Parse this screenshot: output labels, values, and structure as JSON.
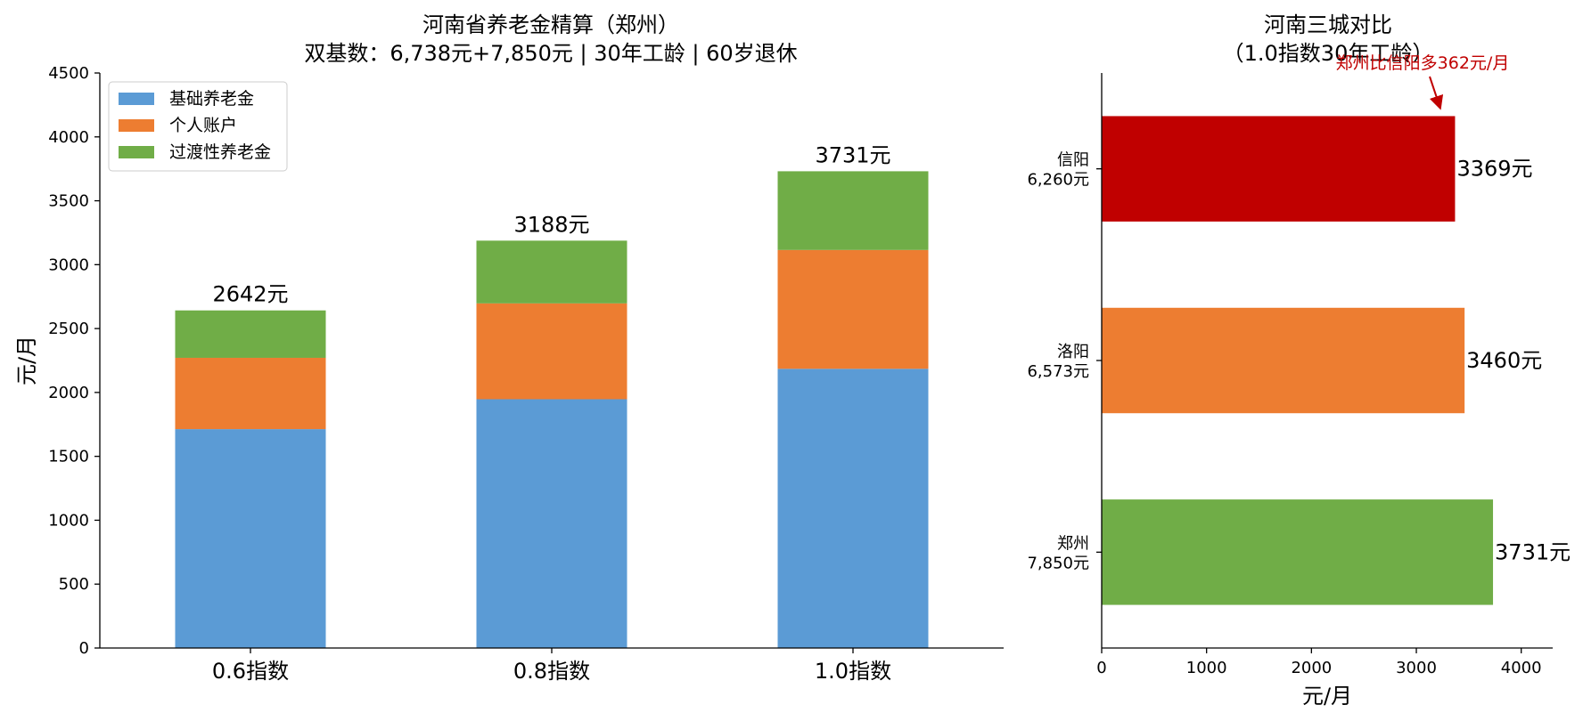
{
  "chart_data": [
    {
      "type": "bar",
      "stacked": true,
      "title": "河南省养老金精算（郑州）",
      "subtitle": "双基数：6,738元+7,850元 | 30年工龄 | 60岁退休",
      "xlabel": "",
      "ylabel": "元/月",
      "ylim": [
        0,
        4500
      ],
      "yticks": [
        "0",
        "500",
        "1000",
        "1500",
        "2000",
        "2500",
        "3000",
        "3500",
        "4000",
        "4500"
      ],
      "categories": [
        "0.6指数",
        "0.8指数",
        "1.0指数"
      ],
      "series": [
        {
          "name": "基础养老金",
          "color": "#5b9bd5",
          "values": [
            1713,
            1947,
            2185
          ]
        },
        {
          "name": "个人账户",
          "color": "#ed7d31",
          "values": [
            558,
            750,
            930
          ]
        },
        {
          "name": "过渡性养老金",
          "color": "#70ad47",
          "values": [
            371,
            491,
            616
          ]
        }
      ],
      "total_labels": [
        "2642元",
        "3188元",
        "3731元"
      ],
      "legend": "top-left",
      "grid": false
    },
    {
      "type": "bar",
      "orientation": "horizontal",
      "title": "河南三城对比",
      "subtitle": "（1.0指数30年工龄）",
      "xlabel": "元/月",
      "ylabel": "",
      "xlim": [
        0,
        4300
      ],
      "xticks": [
        "0",
        "1000",
        "2000",
        "3000",
        "4000"
      ],
      "categories": [
        {
          "city": "郑州",
          "base": "7,850元"
        },
        {
          "city": "洛阳",
          "base": "6,573元"
        },
        {
          "city": "信阳",
          "base": "6,260元"
        }
      ],
      "values": [
        3731,
        3460,
        3369
      ],
      "colors": [
        "#70ad47",
        "#ed7d31",
        "#c00000"
      ],
      "value_labels": [
        "3731元",
        "3460元",
        "3369元"
      ],
      "annotation": {
        "text": "郑州比信阳多362元/月",
        "color": "#c00000"
      },
      "grid": false
    }
  ]
}
